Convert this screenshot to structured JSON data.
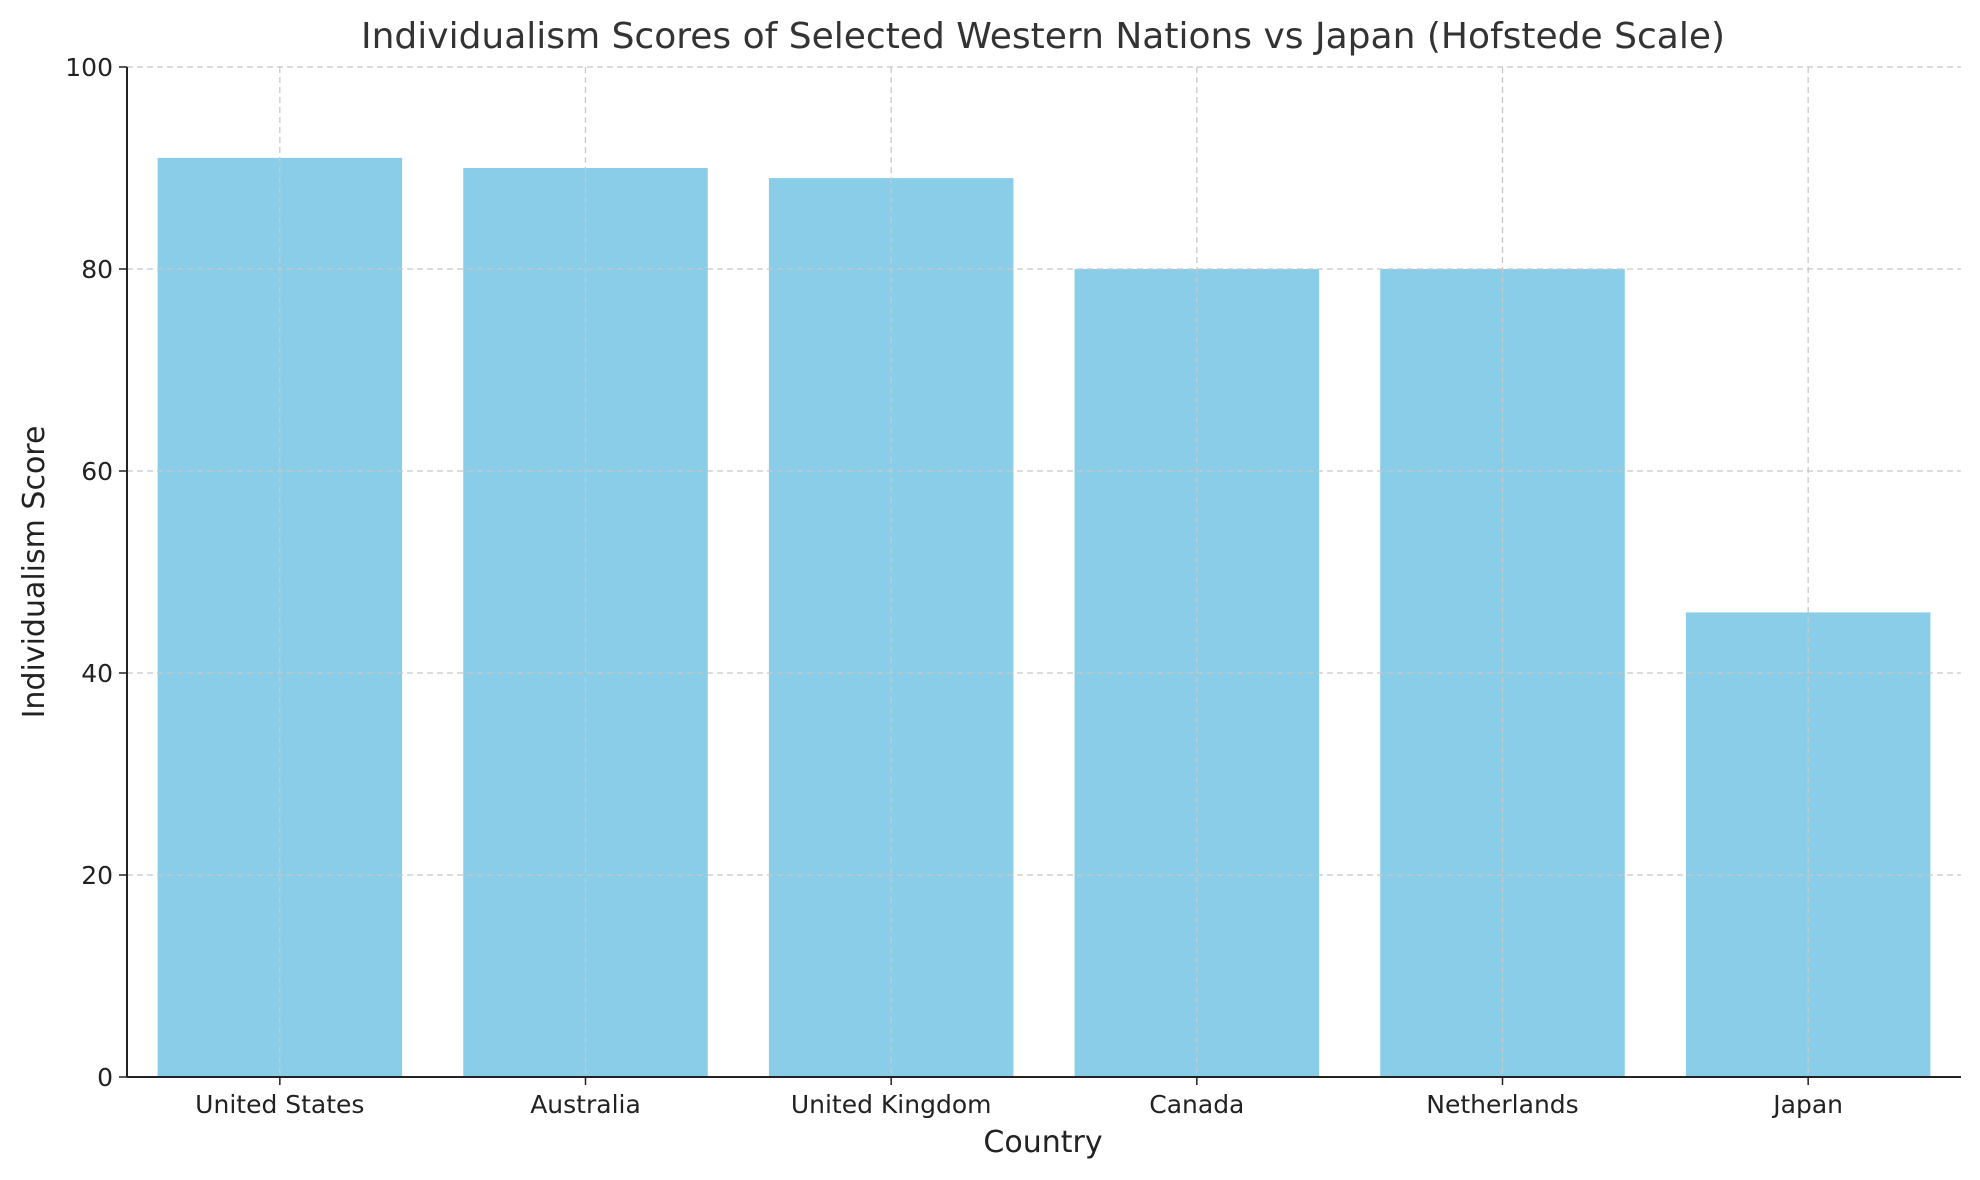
{
  "chart_data": {
    "type": "bar",
    "title": "Individualism Scores of Selected Western Nations vs Japan (Hofstede Scale)",
    "xlabel": "Country",
    "ylabel": "Individualism Score",
    "categories": [
      "United States",
      "Australia",
      "United Kingdom",
      "Canada",
      "Netherlands",
      "Japan"
    ],
    "values": [
      91,
      90,
      89,
      80,
      80,
      46
    ],
    "ylim": [
      0,
      100
    ],
    "yticks": [
      0,
      20,
      40,
      60,
      80,
      100
    ],
    "grid": true,
    "bar_color": "#89CDE9"
  }
}
